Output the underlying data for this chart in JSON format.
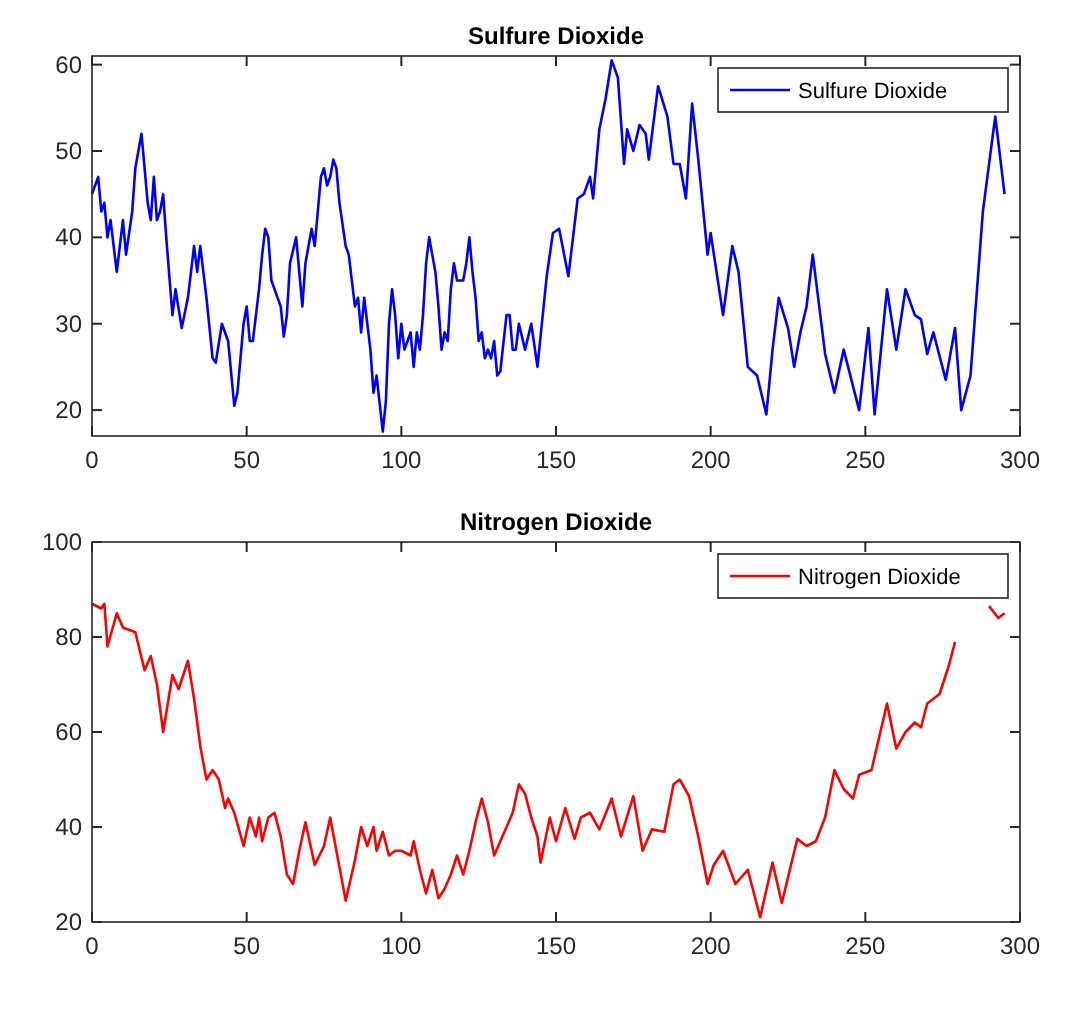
{
  "chart_data": [
    {
      "type": "line",
      "title": "Sulfure Dioxide",
      "xlim": [
        0,
        300
      ],
      "xticks": [
        0,
        50,
        100,
        150,
        200,
        250,
        300
      ],
      "ylim": [
        17,
        61
      ],
      "yticks": [
        20,
        30,
        40,
        50,
        60
      ],
      "grid": false,
      "legend": "top right",
      "marker": "none",
      "line_style": "solid",
      "series": [
        {
          "name": "Sulfure Dioxide",
          "color": "#0000ff",
          "x": [
            0,
            2,
            3,
            4,
            5,
            6,
            8,
            10,
            11,
            13,
            14,
            16,
            18,
            19,
            20,
            21,
            22,
            23,
            24,
            26,
            27,
            29,
            31,
            33,
            34,
            35,
            37,
            39,
            40,
            42,
            44,
            46,
            47,
            49,
            50,
            51,
            52,
            54,
            55,
            56,
            57,
            58,
            60,
            61,
            62,
            63,
            64,
            66,
            67,
            68,
            69,
            71,
            72,
            74,
            75,
            76,
            77,
            78,
            79,
            80,
            82,
            83,
            85,
            86,
            87,
            88,
            89,
            90,
            91,
            92,
            94,
            95,
            96,
            97,
            98,
            99,
            100,
            101,
            102,
            103,
            104,
            105,
            106,
            107,
            108,
            109,
            110,
            111,
            112,
            113,
            114,
            115,
            116,
            117,
            118,
            120,
            121,
            122,
            123,
            124,
            125,
            126,
            127,
            128,
            129,
            130,
            131,
            132,
            134,
            135,
            136,
            137,
            138,
            140,
            142,
            144,
            147,
            149,
            151,
            154,
            157,
            159,
            161,
            162,
            164,
            166,
            168,
            170,
            172,
            173,
            175,
            177,
            179,
            180,
            183,
            186,
            188,
            190,
            192,
            194,
            196,
            199,
            200,
            204,
            207,
            209,
            212,
            215,
            218,
            220,
            222,
            225,
            227,
            229,
            231,
            233,
            237,
            240,
            243,
            248,
            251,
            253,
            257,
            260,
            263,
            266,
            268,
            270,
            272,
            276,
            279,
            281,
            284,
            286,
            288,
            292,
            295
          ],
          "values": [
            45,
            47,
            43,
            44,
            40,
            42,
            36,
            42,
            38,
            43,
            48,
            52,
            44,
            42,
            47,
            42,
            43,
            45,
            40,
            31,
            34,
            29.5,
            33,
            39,
            36,
            39,
            33,
            26,
            25.5,
            30,
            28,
            20.5,
            22,
            30,
            32,
            28,
            28,
            34,
            38,
            41,
            40,
            35,
            33,
            32,
            28.5,
            31,
            37,
            40,
            36,
            32,
            37,
            41,
            39,
            47,
            48,
            46,
            47,
            49,
            48,
            44,
            39,
            38,
            32,
            33,
            29,
            33,
            30,
            27,
            22,
            24,
            17.5,
            21,
            30,
            34,
            31,
            26,
            30,
            27,
            28,
            29,
            25,
            29,
            27,
            31,
            37,
            40,
            38,
            36,
            32,
            27,
            29,
            28,
            34,
            37,
            35,
            35,
            37,
            40,
            36,
            33,
            28,
            29,
            26,
            27,
            26,
            28,
            24,
            24.5,
            31,
            31,
            27,
            27,
            30,
            27,
            30,
            25,
            35.5,
            40.5,
            41,
            35.5,
            44.5,
            45,
            47,
            44.5,
            52.5,
            56,
            60.5,
            58.5,
            48.5,
            52.5,
            50,
            53,
            52,
            49,
            57.5,
            54,
            48.5,
            48.5,
            44.5,
            55.5,
            49,
            38,
            40.5,
            31,
            39,
            36,
            25,
            24,
            19.5,
            27,
            33,
            29.5,
            25,
            29,
            32,
            38,
            26.5,
            22,
            27,
            20,
            29.5,
            19.5,
            34,
            27,
            34,
            31,
            30.5,
            26.5,
            29,
            23.5,
            29.5,
            20,
            24,
            33.5,
            43,
            54,
            45
          ]
        }
      ]
    },
    {
      "type": "line",
      "title": "Nitrogen Dioxide",
      "xlim": [
        0,
        300
      ],
      "xticks": [
        0,
        50,
        100,
        150,
        200,
        250,
        300
      ],
      "ylim": [
        20,
        100
      ],
      "yticks": [
        20,
        40,
        60,
        80,
        100
      ],
      "grid": false,
      "legend": "top right",
      "marker": "none",
      "line_style": "solid",
      "series": [
        {
          "name": "Nitrogen Dioxide",
          "color": "#ff0000",
          "x": [
            0,
            3,
            4,
            5,
            8,
            10,
            14,
            17,
            19,
            21,
            23,
            26,
            28,
            31,
            33,
            35,
            37,
            39,
            41,
            43,
            44,
            46,
            49,
            50,
            51,
            53,
            54,
            55,
            57,
            59,
            61,
            63,
            65,
            67,
            69,
            72,
            75,
            77,
            79,
            82,
            85,
            87,
            89,
            91,
            92,
            94,
            96,
            98,
            100,
            103,
            104,
            106,
            108,
            110,
            112,
            114,
            116,
            118,
            120,
            122,
            124,
            126,
            128,
            130,
            132,
            134,
            136,
            138,
            140,
            142,
            144,
            145,
            148,
            150,
            153,
            156,
            158,
            161,
            164,
            168,
            171,
            175,
            178,
            181,
            185,
            188,
            190,
            193,
            196,
            199,
            201,
            204,
            208,
            212,
            216,
            220,
            223,
            228,
            231,
            234,
            237,
            240,
            243,
            246,
            248,
            252,
            257,
            260,
            263,
            266,
            268,
            270,
            274,
            277,
            279,
            282,
            287,
            290,
            293,
            295
          ],
          "values": [
            87,
            86,
            87,
            78,
            85,
            82,
            81,
            73,
            76,
            70,
            60,
            72,
            69,
            75,
            67,
            57,
            50,
            52,
            50,
            44,
            46,
            43,
            36,
            39,
            42,
            38,
            42,
            37,
            42,
            43,
            38,
            30,
            28,
            35,
            41,
            32,
            36,
            42,
            35,
            24.5,
            33,
            40,
            36,
            40,
            35,
            39,
            34,
            35,
            35,
            34,
            37,
            31,
            26,
            31,
            25,
            27,
            30,
            34,
            30,
            35,
            41,
            46,
            41,
            34,
            37,
            40,
            43,
            49,
            47,
            42,
            38,
            32.5,
            42,
            37,
            44,
            37.5,
            42,
            43,
            39.5,
            46,
            38,
            46.5,
            35,
            39.5,
            39,
            49,
            50,
            46.5,
            38,
            28,
            32,
            35,
            28,
            31,
            21,
            32.5,
            24,
            37.5,
            36,
            37,
            42,
            52,
            48,
            46,
            51,
            52,
            66,
            56.5,
            60,
            62,
            61,
            66,
            68,
            74,
            79,
            null,
            null,
            86.5,
            84,
            85
          ]
        }
      ]
    }
  ]
}
